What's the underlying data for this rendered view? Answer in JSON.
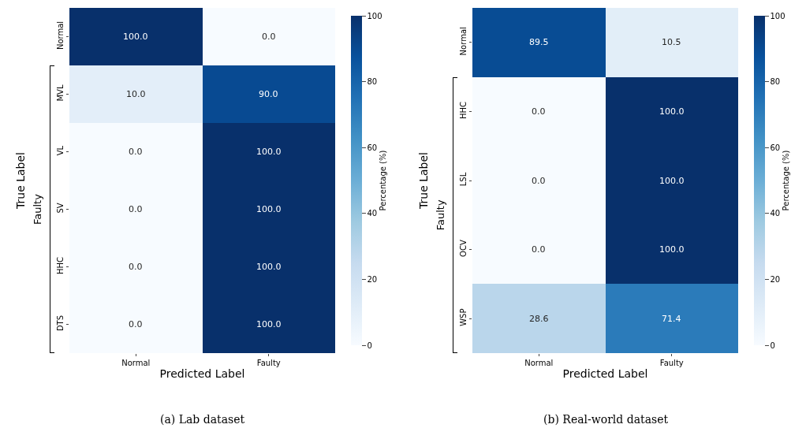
{
  "chart_data": [
    {
      "type": "heatmap",
      "categories": [
        "Normal",
        "Faulty"
      ],
      "y_categories": [
        "Normal",
        "MVL",
        "VL",
        "SV",
        "HHC",
        "DTS"
      ],
      "cells": [
        [
          100.0,
          0.0
        ],
        [
          10.0,
          90.0
        ],
        [
          0.0,
          100.0
        ],
        [
          0.0,
          100.0
        ],
        [
          0.0,
          100.0
        ],
        [
          0.0,
          100.0
        ]
      ],
      "cell_labels": [
        [
          "100.0",
          "0.0"
        ],
        [
          "10.0",
          "90.0"
        ],
        [
          "0.0",
          "100.0"
        ],
        [
          "0.0",
          "100.0"
        ],
        [
          "0.0",
          "100.0"
        ],
        [
          "0.0",
          "100.0"
        ]
      ],
      "xlabel": "Predicted Label",
      "ylabel": "True Label",
      "clabel": "Percentage (%)",
      "clim": [
        0,
        100
      ],
      "cticks": [
        0,
        20,
        40,
        60,
        80,
        100
      ],
      "annotations": [
        "Faulty",
        "(a) Lab dataset"
      ]
    },
    {
      "type": "heatmap",
      "categories": [
        "Normal",
        "Faulty"
      ],
      "y_categories": [
        "Normal",
        "HHC",
        "LSL",
        "OCV",
        "WSP"
      ],
      "cells": [
        [
          89.5,
          10.5
        ],
        [
          0.0,
          100.0
        ],
        [
          0.0,
          100.0
        ],
        [
          0.0,
          100.0
        ],
        [
          28.6,
          71.4
        ]
      ],
      "cell_labels": [
        [
          "89.5",
          "10.5"
        ],
        [
          "0.0",
          "100.0"
        ],
        [
          "0.0",
          "100.0"
        ],
        [
          "0.0",
          "100.0"
        ],
        [
          "28.6",
          "71.4"
        ]
      ],
      "xlabel": "Predicted Label",
      "ylabel": "True Label",
      "clabel": "Percentage (%)",
      "clim": [
        0,
        100
      ],
      "cticks": [
        0,
        20,
        40,
        60,
        80,
        100
      ],
      "annotations": [
        "Faulty",
        "(b) Real-world dataset"
      ]
    }
  ]
}
